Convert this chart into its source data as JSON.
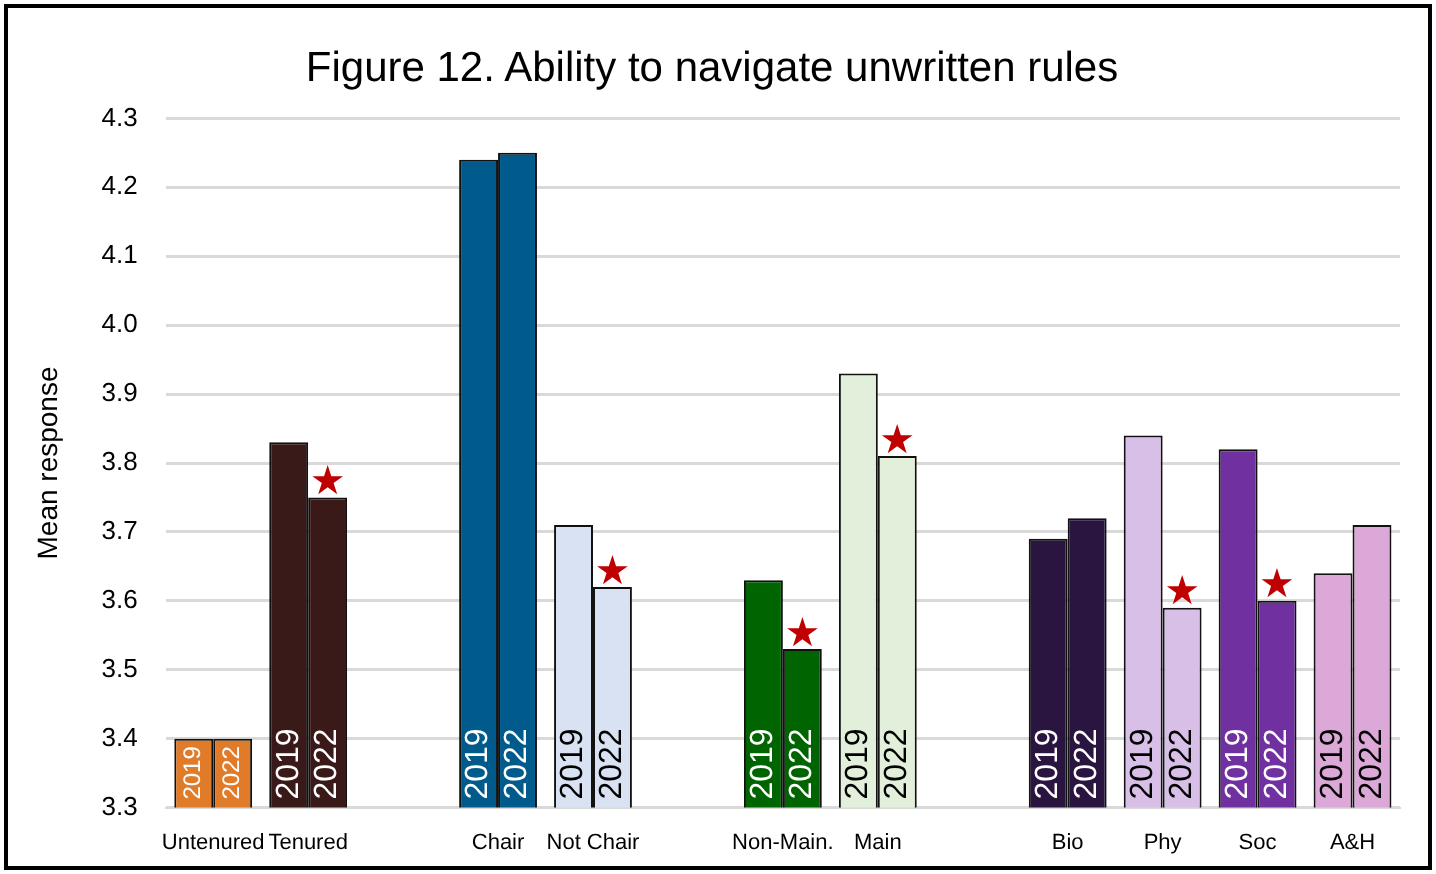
{
  "chart_data": {
    "type": "bar",
    "title": "Figure 12. Ability to navigate unwritten rules",
    "ylabel": "Mean response",
    "categories": [
      "Untenured",
      "Tenured",
      null,
      "Chair",
      "Not Chair",
      null,
      "Non-Main.",
      "Main",
      null,
      "Bio",
      "Phy",
      "Soc",
      "A&H"
    ],
    "series": [
      {
        "name": "2019",
        "values": [
          3.4,
          3.83,
          null,
          4.24,
          3.71,
          null,
          3.63,
          3.93,
          null,
          3.69,
          3.84,
          3.82,
          3.64
        ],
        "colors": [
          "#e07b2a",
          "#3a1a18",
          null,
          "#005b8c",
          "#d9e2f3",
          null,
          "#006400",
          "#e2efda",
          null,
          "#2a1540",
          "#d8bfe8",
          "#7030a0",
          "#dca8d8"
        ]
      },
      {
        "name": "2022",
        "values": [
          3.4,
          3.75,
          null,
          4.25,
          3.62,
          null,
          3.53,
          3.81,
          null,
          3.72,
          3.59,
          3.6,
          3.71
        ],
        "colors": [
          "#e07b2a",
          "#3a1a18",
          null,
          "#005b8c",
          "#d9e2f3",
          null,
          "#006400",
          "#e2efda",
          null,
          "#2a1540",
          "#d8bfe8",
          "#7030a0",
          "#dca8d8"
        ]
      }
    ],
    "ylim": [
      3.3,
      4.3
    ],
    "yticks": [
      3.3,
      3.4,
      3.5,
      3.6,
      3.7,
      3.8,
      3.9,
      {
        "value": 4,
        "label": "4.0"
      },
      4.1,
      4.2,
      4.3
    ],
    "grid": "y",
    "legend": false,
    "annotations": [
      {
        "text": "★",
        "x": "Tenured",
        "y": 3.77
      },
      {
        "text": "★",
        "x": "Not Chair",
        "y": 3.64
      },
      {
        "text": "★",
        "x": "Non-Main.",
        "y": 3.55
      },
      {
        "text": "★",
        "x": "Main",
        "y": 3.83
      },
      {
        "text": "★",
        "x": "Phy",
        "y": 3.61
      },
      {
        "text": "★",
        "x": "Soc",
        "y": 3.62
      }
    ]
  }
}
